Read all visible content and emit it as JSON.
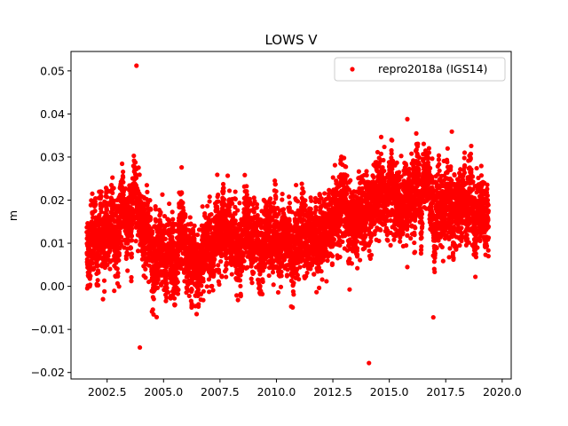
{
  "chart_data": {
    "type": "scatter",
    "title": "LOWS V",
    "xlabel": "",
    "ylabel": "m",
    "xlim": [
      2000.9,
      2020.4
    ],
    "ylim": [
      -0.0215,
      0.0545
    ],
    "xticks": [
      2002.5,
      2005.0,
      2007.5,
      2010.0,
      2012.5,
      2015.0,
      2017.5,
      2020.0
    ],
    "xtick_labels": [
      "2002.5",
      "2005.0",
      "2007.5",
      "2010.0",
      "2012.5",
      "2015.0",
      "2017.5",
      "2020.0"
    ],
    "yticks": [
      -0.02,
      -0.01,
      0.0,
      0.01,
      0.02,
      0.03,
      0.04,
      0.05
    ],
    "ytick_labels": [
      "−0.02",
      "−0.01",
      "0.00",
      "0.01",
      "0.02",
      "0.03",
      "0.04",
      "0.05"
    ],
    "grid": false,
    "legend_position": "top-right",
    "series": [
      {
        "name": "repro2018a (IGS14)",
        "color": "#ff0000",
        "marker": "circle",
        "trend": [
          [
            2001.6,
            0.0095
          ],
          [
            2002.0,
            0.011
          ],
          [
            2002.5,
            0.0125
          ],
          [
            2003.0,
            0.0145
          ],
          [
            2003.5,
            0.0165
          ],
          [
            2004.0,
            0.015
          ],
          [
            2004.5,
            0.01
          ],
          [
            2005.0,
            0.0065
          ],
          [
            2005.5,
            0.006
          ],
          [
            2006.0,
            0.0075
          ],
          [
            2006.5,
            0.007
          ],
          [
            2007.0,
            0.0085
          ],
          [
            2007.5,
            0.01
          ],
          [
            2008.0,
            0.0105
          ],
          [
            2008.5,
            0.011
          ],
          [
            2009.0,
            0.0115
          ],
          [
            2009.5,
            0.011
          ],
          [
            2010.0,
            0.01
          ],
          [
            2010.5,
            0.0095
          ],
          [
            2011.0,
            0.01
          ],
          [
            2011.5,
            0.012
          ],
          [
            2012.0,
            0.0135
          ],
          [
            2012.5,
            0.0145
          ],
          [
            2013.0,
            0.0155
          ],
          [
            2013.5,
            0.017
          ],
          [
            2014.0,
            0.0185
          ],
          [
            2014.5,
            0.02
          ],
          [
            2015.0,
            0.0205
          ],
          [
            2015.5,
            0.021
          ],
          [
            2016.0,
            0.0215
          ],
          [
            2016.5,
            0.021
          ],
          [
            2017.0,
            0.0185
          ],
          [
            2017.5,
            0.0175
          ],
          [
            2018.0,
            0.017
          ],
          [
            2018.5,
            0.0175
          ],
          [
            2019.0,
            0.018
          ],
          [
            2019.4,
            0.018
          ]
        ],
        "outliers": [
          [
            2003.8,
            0.0512
          ],
          [
            2003.95,
            -0.0142
          ],
          [
            2014.1,
            -0.0178
          ],
          [
            2016.95,
            -0.0072
          ],
          [
            2015.8,
            0.0388
          ],
          [
            2005.8,
            0.0276
          ]
        ]
      }
    ]
  }
}
